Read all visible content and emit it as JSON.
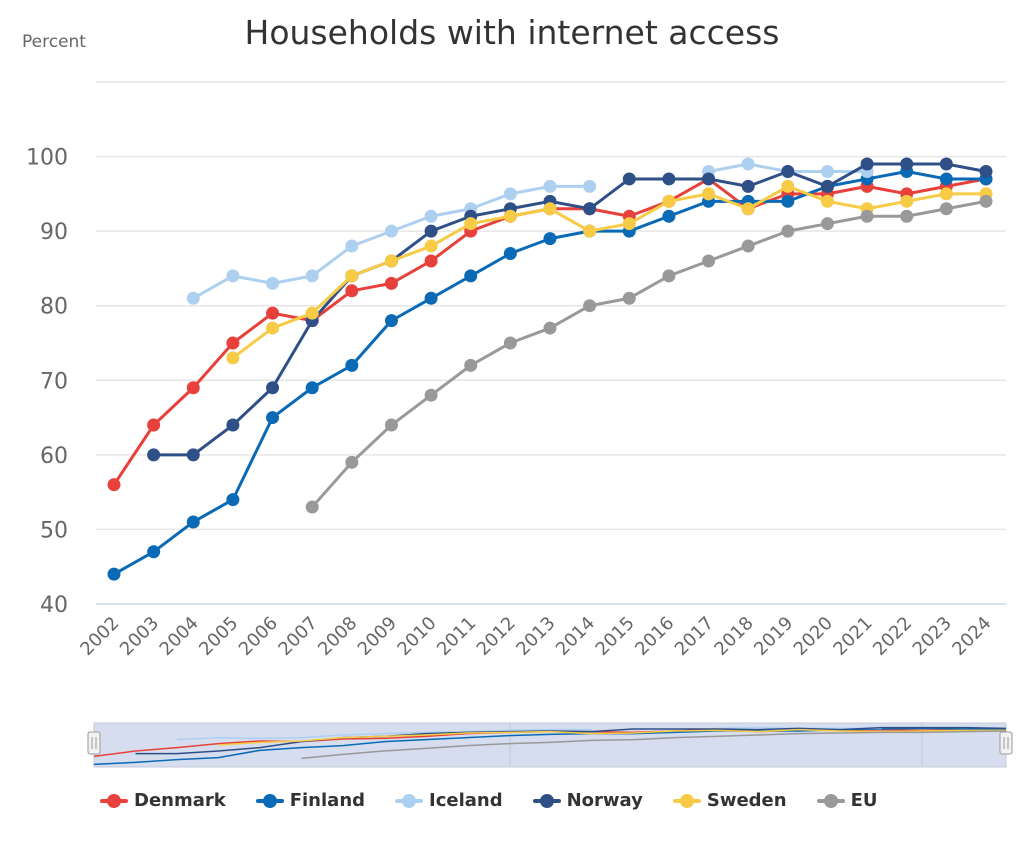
{
  "chart_data": {
    "type": "line",
    "title": "Households with internet access",
    "ylabel": "Percent",
    "xlabel": "",
    "ylim": [
      40,
      110
    ],
    "yticks": [
      40,
      50,
      60,
      70,
      80,
      90,
      100
    ],
    "grid": true,
    "legend_position": "bottom",
    "x": [
      "2002",
      "2003",
      "2004",
      "2005",
      "2006",
      "2007",
      "2008",
      "2009",
      "2010",
      "2011",
      "2012",
      "2013",
      "2014",
      "2015",
      "2016",
      "2017",
      "2018",
      "2019",
      "2020",
      "2021",
      "2022",
      "2023",
      "2024"
    ],
    "series": [
      {
        "name": "Denmark",
        "color": "#e8403a",
        "values": [
          56,
          64,
          69,
          75,
          79,
          78,
          82,
          83,
          86,
          90,
          92,
          93,
          93,
          92,
          94,
          97,
          93,
          95,
          95,
          96,
          95,
          96,
          97
        ]
      },
      {
        "name": "Finland",
        "color": "#0a6ab5",
        "values": [
          44,
          47,
          51,
          54,
          65,
          69,
          72,
          78,
          81,
          84,
          87,
          89,
          90,
          90,
          92,
          94,
          94,
          94,
          96,
          97,
          98,
          97,
          97
        ]
      },
      {
        "name": "Iceland",
        "color": "#aed0f0",
        "values": [
          null,
          null,
          81,
          84,
          83,
          84,
          88,
          90,
          92,
          93,
          95,
          96,
          96,
          null,
          null,
          98,
          99,
          98,
          98,
          98,
          null,
          null,
          null
        ]
      },
      {
        "name": "Norway",
        "color": "#2f4f87",
        "values": [
          null,
          60,
          60,
          64,
          69,
          78,
          84,
          86,
          90,
          92,
          93,
          94,
          93,
          97,
          97,
          97,
          96,
          98,
          96,
          99,
          99,
          99,
          98
        ]
      },
      {
        "name": "Sweden",
        "color": "#f7cb45",
        "values": [
          null,
          null,
          null,
          73,
          77,
          79,
          84,
          86,
          88,
          91,
          92,
          93,
          90,
          91,
          94,
          95,
          93,
          96,
          94,
          93,
          94,
          95,
          95
        ]
      },
      {
        "name": "EU",
        "color": "#999999",
        "values": [
          null,
          null,
          null,
          null,
          null,
          53,
          59,
          64,
          68,
          72,
          75,
          77,
          80,
          81,
          84,
          86,
          88,
          90,
          91,
          92,
          92,
          93,
          94
        ]
      }
    ]
  },
  "navigator": {
    "left_handle": "navigator-left-handle",
    "right_handle": "navigator-right-handle"
  }
}
